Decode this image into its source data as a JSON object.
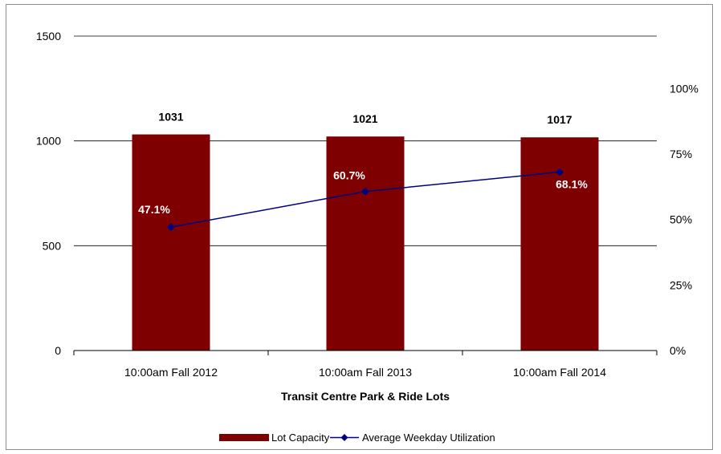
{
  "chart_data": {
    "type": "bar",
    "title": "",
    "xlabel": "Transit  Centre Park & Ride Lots",
    "ylabel": "",
    "categories": [
      "10:00am Fall 2012",
      "10:00am Fall 2013",
      "10:00am Fall 2014"
    ],
    "ylim": [
      0,
      1500
    ],
    "y_ticks": [
      "0",
      "500",
      "1000",
      "1500"
    ],
    "y2lim": [
      0,
      1.2
    ],
    "y2_ticks": [
      "0%",
      "25%",
      "50%",
      "75%",
      "100%"
    ],
    "grid": true,
    "legend_position": "bottom",
    "series": [
      {
        "name": "Lot Capacity",
        "type": "bar",
        "axis": "left",
        "color": "#7f0000",
        "values": [
          1031,
          1021,
          1017
        ],
        "labels": [
          "1031",
          "1021",
          "1017"
        ]
      },
      {
        "name": "Average Weekday Utilization",
        "type": "line",
        "axis": "right",
        "color": "#000080",
        "marker": "diamond",
        "values": [
          0.471,
          0.607,
          0.681
        ],
        "labels": [
          "47.1%",
          "60.7%",
          "68.1%"
        ]
      }
    ]
  }
}
